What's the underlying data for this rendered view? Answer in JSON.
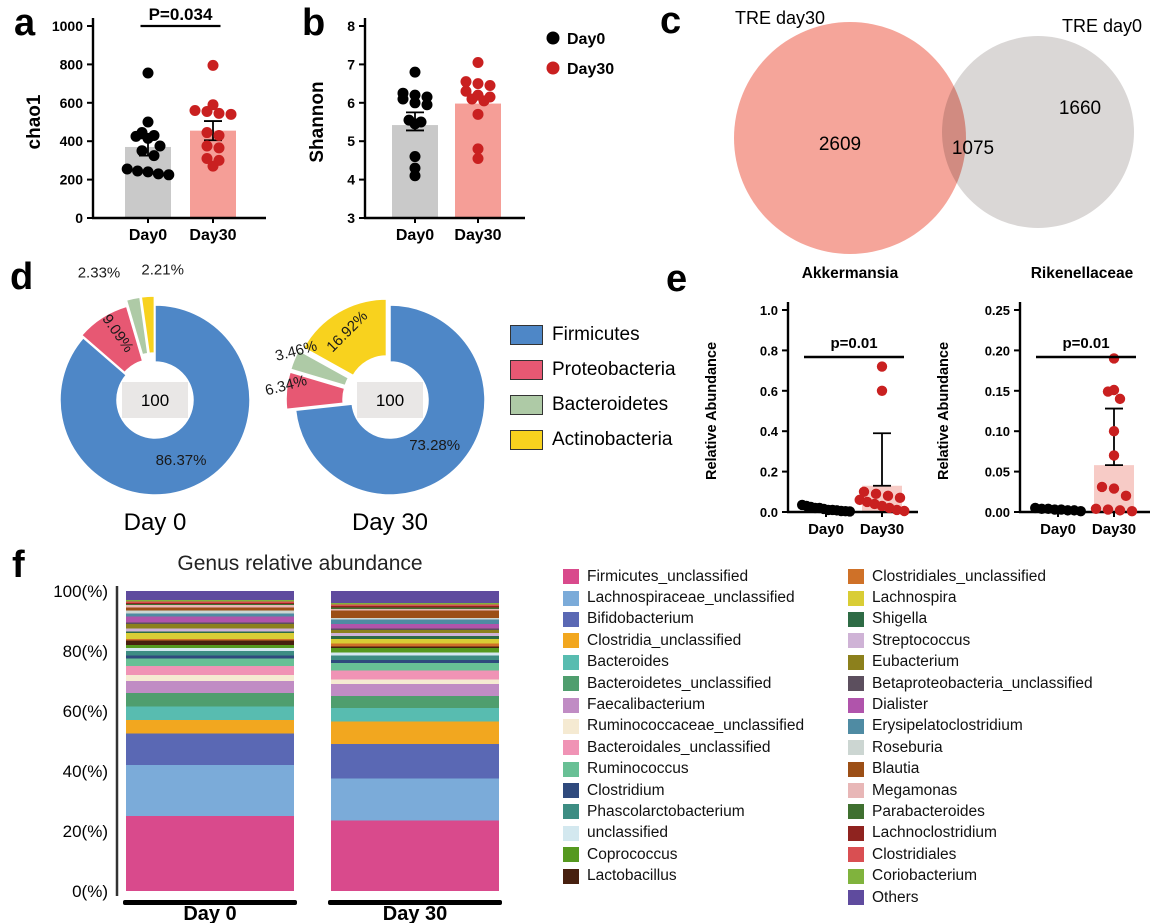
{
  "panels": {
    "a": "a",
    "b": "b",
    "c": "c",
    "d": "d",
    "e": "e",
    "f": "f"
  },
  "colors": {
    "day0_point": "#000000",
    "day30_point": "#c92020",
    "day0_bar": "#c9c9c9",
    "day30_bar": "#f59e97",
    "venn_day30": "#f49b8f",
    "venn_day0": "#d6d3d2",
    "donut_center_box": "#e9e7e6"
  },
  "chart_data": [
    {
      "id": "chao1",
      "panel": "a",
      "type": "bar",
      "title": "",
      "significance": "P=0.034",
      "ylabel": "chao1",
      "ylim": [
        0,
        1000
      ],
      "yticks": [
        0,
        200,
        400,
        600,
        800,
        1000
      ],
      "ytick_decimals": 0,
      "categories": [
        "Day0",
        "Day30"
      ],
      "bar_colors": [
        "#c9c9c9",
        "#f59e97"
      ],
      "point_colors": [
        "#000000",
        "#c92020"
      ],
      "bars": [
        370,
        455
      ],
      "whiskers": [
        [
          325,
          415
        ],
        [
          405,
          505
        ]
      ],
      "points": [
        [
          755,
          500,
          445,
          430,
          425,
          415,
          375,
          350,
          325,
          255,
          245,
          240,
          230,
          225
        ],
        [
          795,
          590,
          560,
          555,
          545,
          540,
          445,
          430,
          375,
          365,
          310,
          300,
          270
        ]
      ]
    },
    {
      "id": "shannon",
      "panel": "b",
      "type": "bar",
      "title": "",
      "significance": "",
      "ylabel": "Shannon",
      "ylim": [
        3,
        8
      ],
      "yticks": [
        3,
        4,
        5,
        6,
        7,
        8
      ],
      "ytick_decimals": 0,
      "categories": [
        "Day0",
        "Day30"
      ],
      "legend": [
        {
          "label": "Day0",
          "color": "#000000"
        },
        {
          "label": "Day30",
          "color": "#c92020"
        }
      ],
      "bar_colors": [
        "#c9c9c9",
        "#f59e97"
      ],
      "point_colors": [
        "#000000",
        "#c92020"
      ],
      "bars": [
        5.42,
        5.98
      ],
      "whiskers": [
        [
          5.28,
          5.75
        ],
        null
      ],
      "points": [
        [
          6.8,
          6.25,
          6.2,
          6.15,
          6.1,
          6.0,
          5.95,
          5.55,
          5.5,
          5.45,
          4.6,
          4.3,
          4.1
        ],
        [
          7.05,
          6.55,
          6.5,
          6.45,
          6.3,
          6.2,
          6.15,
          6.1,
          6.05,
          5.7,
          4.8,
          4.55
        ]
      ]
    },
    {
      "id": "venn",
      "panel": "c",
      "type": "venn",
      "sets": [
        {
          "label": "TRE day30",
          "count": "2609",
          "color": "#f49b8f"
        },
        {
          "label": "TRE day0",
          "count": "1660",
          "color": "#d6d3d2"
        }
      ],
      "overlap": "1075"
    },
    {
      "id": "phylum",
      "panel": "d",
      "type": "pie",
      "categories": [
        "Firmicutes",
        "Proteobacteria",
        "Bacteroidetes",
        "Actinobacteria"
      ],
      "colors": [
        "#4e87c7",
        "#e75873",
        "#aecaa6",
        "#f8d21e"
      ],
      "donuts": [
        {
          "caption": "Day 0",
          "center_label": "100",
          "values": [
            86.37,
            9.09,
            2.33,
            2.21
          ],
          "labels": [
            "86.37%",
            "9.09%",
            "2.33%",
            "2.21%"
          ],
          "explode": [
            0,
            3,
            9,
            9
          ],
          "label_pos": [
            [
              0.66,
              0,
              0,
              8
            ],
            [
              0.8,
              55,
              0,
              0
            ],
            [
              1.3,
              0,
              -30,
              -2
            ],
            [
              1.26,
              0,
              16,
              -6
            ]
          ]
        },
        {
          "caption": "Day 30",
          "center_label": "100",
          "values": [
            73.28,
            6.34,
            3.46,
            16.92
          ],
          "labels": [
            "73.28%",
            "6.34%",
            "3.46%",
            "16.92%"
          ],
          "explode": [
            0,
            9,
            9,
            7
          ],
          "label_pos": [
            [
              0.66,
              0,
              -2,
              8
            ],
            [
              1.15,
              -15,
              6,
              0
            ],
            [
              1.15,
              -15,
              8,
              -2
            ],
            [
              0.82,
              -45,
              0,
              2
            ]
          ]
        }
      ]
    },
    {
      "id": "akkermansia",
      "panel": "e",
      "type": "bar",
      "title": "Akkermansia",
      "significance": "p=0.01",
      "ylabel": "Relative Abundance",
      "ylim": [
        0,
        1.0
      ],
      "yticks": [
        0,
        0.2,
        0.4,
        0.6,
        0.8,
        1.0
      ],
      "ytick_decimals": 1,
      "categories": [
        "Day0",
        "Day30"
      ],
      "bar_colors": [
        "#1a1a1a",
        "#f7cbc6"
      ],
      "point_colors": [
        "#000000",
        "#c92020"
      ],
      "bars": [
        0.02,
        0.13
      ],
      "whiskers": [
        null,
        [
          0.13,
          0.39
        ]
      ],
      "points": [
        [
          0.035,
          0.03,
          0.025,
          0.02,
          0.02,
          0.015,
          0.01,
          0.01,
          0.008,
          0.005,
          0.004,
          0.003
        ],
        [
          0.72,
          0.6,
          0.1,
          0.09,
          0.08,
          0.07,
          0.06,
          0.05,
          0.04,
          0.03,
          0.02,
          0.01,
          0.005
        ]
      ]
    },
    {
      "id": "rikenellaceae",
      "panel": "e",
      "type": "bar",
      "title": "Rikenellaceae",
      "significance": "p=0.01",
      "ylabel": "Relative Abundance",
      "ylim": [
        0,
        0.25
      ],
      "yticks": [
        0,
        0.05,
        0.1,
        0.15,
        0.2,
        0.25
      ],
      "ytick_decimals": 2,
      "categories": [
        "Day0",
        "Day30"
      ],
      "bar_colors": [
        "#1a1a1a",
        "#f7cbc6"
      ],
      "point_colors": [
        "#000000",
        "#c92020"
      ],
      "bars": [
        0.004,
        0.058
      ],
      "whiskers": [
        null,
        [
          0.058,
          0.128
        ]
      ],
      "points": [
        [
          0.005,
          0.004,
          0.004,
          0.003,
          0.003,
          0.002,
          0.002,
          0.001
        ],
        [
          0.19,
          0.151,
          0.149,
          0.14,
          0.1,
          0.07,
          0.031,
          0.029,
          0.02,
          0.004,
          0.003,
          0.002,
          0.001
        ]
      ]
    },
    {
      "id": "genus",
      "panel": "f",
      "type": "stacked-bar",
      "title": "Genus relative abundance",
      "ytick_labels": [
        "100(%)",
        "80(%)",
        "60(%)",
        "40(%)",
        "20(%)",
        "0(%)"
      ],
      "ytick_values": [
        100,
        80,
        60,
        40,
        20,
        0
      ],
      "categories": [
        "Day 0",
        "Day 30"
      ],
      "series": [
        {
          "name": "Firmicutes_unclassified",
          "color": "#d94a8c",
          "values": [
            25,
            23.5
          ]
        },
        {
          "name": "Lachnospiraceae_unclassified",
          "color": "#7babd9",
          "values": [
            17,
            14
          ]
        },
        {
          "name": "Bifidobacterium",
          "color": "#5a68b4",
          "values": [
            10.5,
            11.5
          ]
        },
        {
          "name": "Clostridia_unclassified",
          "color": "#f2a71f",
          "values": [
            4.5,
            7.5
          ]
        },
        {
          "name": "Bacteroides",
          "color": "#58bcb0",
          "values": [
            4.5,
            4.5
          ]
        },
        {
          "name": "Bacteroidetes_unclassified",
          "color": "#4f9e6e",
          "values": [
            4.5,
            4
          ]
        },
        {
          "name": "Faecalibacterium",
          "color": "#c08cc4",
          "values": [
            4,
            4
          ]
        },
        {
          "name": "Ruminococcaceae_unclassified",
          "color": "#f5ead2",
          "values": [
            2,
            1.5
          ]
        },
        {
          "name": "Bacteroidales_unclassified",
          "color": "#f093b5",
          "values": [
            3,
            3
          ]
        },
        {
          "name": "Ruminococcus",
          "color": "#68c095",
          "values": [
            2.5,
            2.5
          ]
        },
        {
          "name": "Clostridium",
          "color": "#2f4a7d",
          "values": [
            1,
            1
          ]
        },
        {
          "name": "Phascolarctobacterium",
          "color": "#3d8d83",
          "values": [
            1.5,
            1.5
          ]
        },
        {
          "name": "unclassified",
          "color": "#d3e8ef",
          "values": [
            1,
            1
          ]
        },
        {
          "name": "Coprococcus",
          "color": "#55991f",
          "values": [
            1,
            1.5
          ]
        },
        {
          "name": "Lactobacillus",
          "color": "#47200f",
          "values": [
            1.5,
            0.5
          ]
        },
        {
          "name": "Clostridiales_unclassified",
          "color": "#cf7128",
          "values": [
            0.5,
            1
          ]
        },
        {
          "name": "Lachnospira",
          "color": "#d9cd35",
          "values": [
            2,
            1.5
          ]
        },
        {
          "name": "Shigella",
          "color": "#2e6b45",
          "values": [
            0.5,
            1
          ]
        },
        {
          "name": "Streptococcus",
          "color": "#cfb3d6",
          "values": [
            1,
            1
          ]
        },
        {
          "name": "Eubacterium",
          "color": "#8c801c",
          "values": [
            1.5,
            1
          ]
        },
        {
          "name": "Betaproteobacteria_unclassified",
          "color": "#5c4f5e",
          "values": [
            0.5,
            0.5
          ]
        },
        {
          "name": "Dialister",
          "color": "#b054ab",
          "values": [
            2,
            1.5
          ]
        },
        {
          "name": "Erysipelatoclostridium",
          "color": "#4f8ba3",
          "values": [
            1,
            1.5
          ]
        },
        {
          "name": "Roseburia",
          "color": "#ccd6d2",
          "values": [
            1,
            0.5
          ]
        },
        {
          "name": "Blautia",
          "color": "#9c4f16",
          "values": [
            1,
            2.5
          ]
        },
        {
          "name": "Megamonas",
          "color": "#e8b7b7",
          "values": [
            0.8,
            0.5
          ]
        },
        {
          "name": "Parabacteroides",
          "color": "#3f7030",
          "values": [
            0.4,
            0.5
          ]
        },
        {
          "name": "Lachnoclostridium",
          "color": "#8f231f",
          "values": [
            0.3,
            0.5
          ]
        },
        {
          "name": "Clostridiales",
          "color": "#d94f52",
          "values": [
            0.5,
            0.5
          ]
        },
        {
          "name": "Coriobacterium",
          "color": "#80b33d",
          "values": [
            0.5,
            0.5
          ]
        },
        {
          "name": "Others",
          "color": "#5f4b9e",
          "values": [
            3,
            4
          ]
        }
      ]
    }
  ]
}
